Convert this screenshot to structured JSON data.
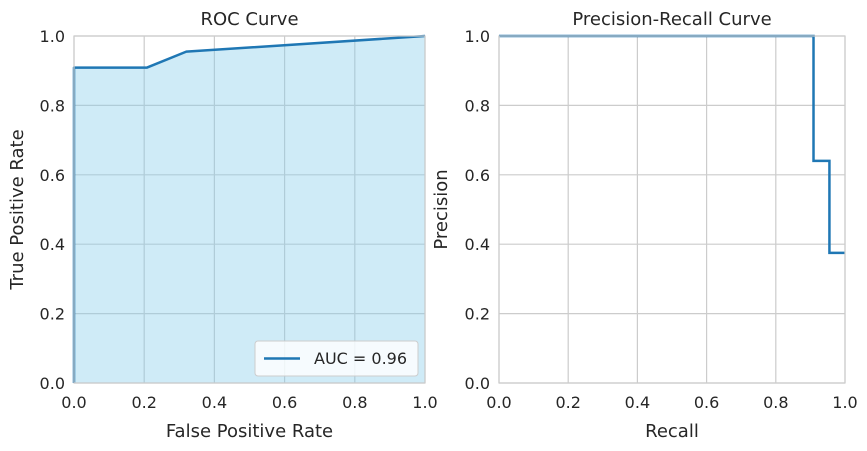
{
  "chart_data": [
    {
      "type": "area",
      "title": "ROC Curve",
      "xlabel": "False Positive Rate",
      "ylabel": "True Positive Rate",
      "xlim": [
        0,
        1
      ],
      "ylim": [
        0,
        1
      ],
      "xticks": [
        "0.0",
        "0.2",
        "0.4",
        "0.6",
        "0.8",
        "1.0"
      ],
      "yticks": [
        "0.0",
        "0.2",
        "0.4",
        "0.6",
        "0.8",
        "1.0"
      ],
      "grid": true,
      "legend_position": "lower-right",
      "series": [
        {
          "name": "AUC = 0.96",
          "color": "#1f77b4",
          "fill_color": "#87ceeb",
          "x": [
            0.0,
            0.0,
            0.208,
            0.32,
            1.0
          ],
          "y": [
            0.0,
            0.909,
            0.909,
            0.955,
            1.0
          ]
        }
      ]
    },
    {
      "type": "line",
      "title": "Precision-Recall Curve",
      "xlabel": "Recall",
      "ylabel": "Precision",
      "xlim": [
        0,
        1
      ],
      "ylim": [
        0,
        1
      ],
      "xticks": [
        "0.0",
        "0.2",
        "0.4",
        "0.6",
        "0.8",
        "1.0"
      ],
      "yticks": [
        "0.0",
        "0.2",
        "0.4",
        "0.6",
        "0.8",
        "1.0"
      ],
      "grid": true,
      "series": [
        {
          "color": "#1f77b4",
          "step": true,
          "x": [
            0.0,
            0.909,
            0.909,
            0.955,
            0.955,
            1.0
          ],
          "y": [
            1.0,
            1.0,
            0.64,
            0.64,
            0.375,
            0.375
          ]
        }
      ]
    }
  ]
}
